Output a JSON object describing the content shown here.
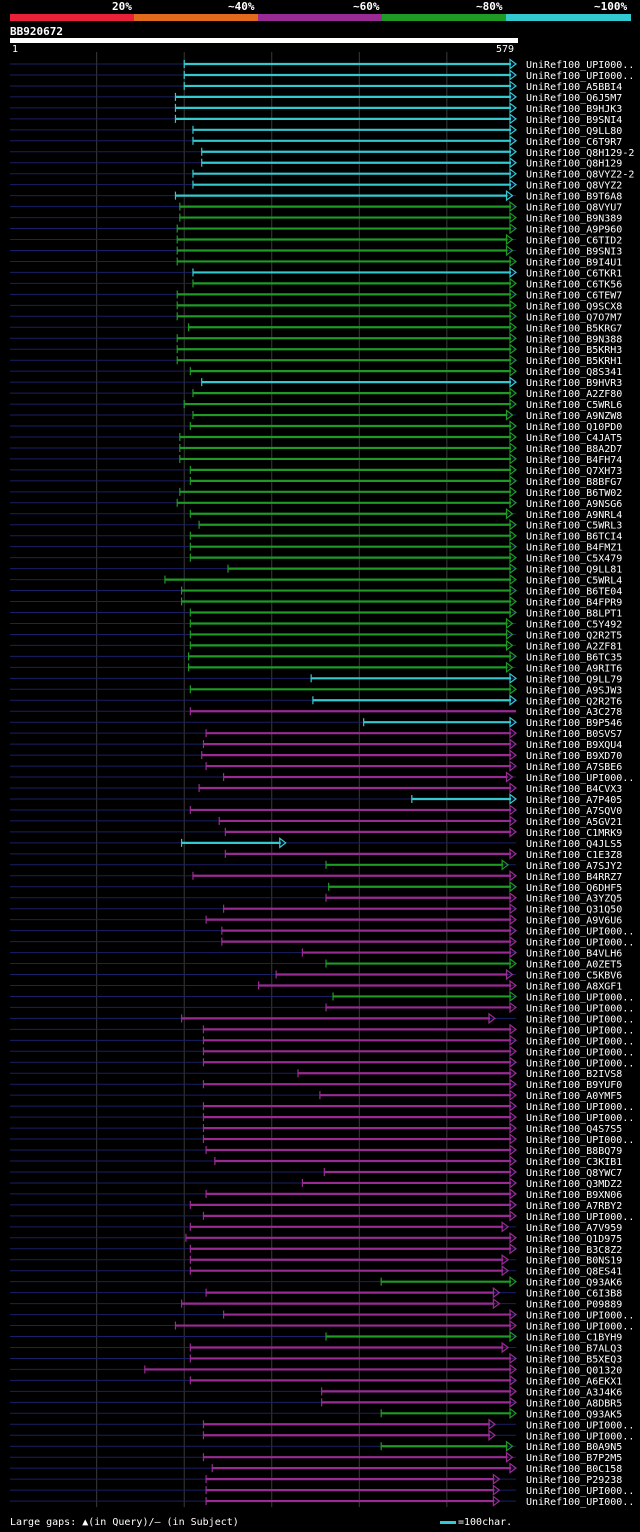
{
  "scale": {
    "labels": [
      "20%",
      "~40%",
      "~60%",
      "~80%",
      "~100%"
    ],
    "colors": [
      "#e8203a",
      "#e26a1c",
      "#9a2b95",
      "#1e9a25",
      "#33c9d0"
    ]
  },
  "query": {
    "name": "BB920672",
    "start": "1",
    "end": "579"
  },
  "footer": {
    "gaps_text": "Large gaps: ▲(in Query)/– (in Subject)",
    "unit_text": "=100char."
  },
  "chart_data": {
    "type": "alignment-overview",
    "query_length": 579,
    "identity_bins": [
      "20%",
      "~40%",
      "~60%",
      "~80%",
      "~100%"
    ],
    "hits": [
      {
        "name": "UniRef100_UPI000..",
        "start": 200,
        "end": 579,
        "bin": 4,
        "arrow": "right"
      },
      {
        "name": "UniRef100_UPI000..",
        "start": 200,
        "end": 579,
        "bin": 4,
        "arrow": "right"
      },
      {
        "name": "UniRef100_A5BBI4",
        "start": 200,
        "end": 579,
        "bin": 4,
        "arrow": "right"
      },
      {
        "name": "UniRef100_Q6J5M7",
        "start": 190,
        "end": 579,
        "bin": 4,
        "arrow": "right"
      },
      {
        "name": "UniRef100_B9HJK3",
        "start": 190,
        "end": 579,
        "bin": 4,
        "arrow": "right"
      },
      {
        "name": "UniRef100_B9SNI4",
        "start": 190,
        "end": 579,
        "bin": 4,
        "arrow": "right"
      },
      {
        "name": "UniRef100_Q9LL80",
        "start": 210,
        "end": 579,
        "bin": 4,
        "arrow": "right"
      },
      {
        "name": "UniRef100_C6T9R7",
        "start": 210,
        "end": 579,
        "bin": 4,
        "arrow": "right"
      },
      {
        "name": "UniRef100_Q8H129-2",
        "start": 220,
        "end": 579,
        "bin": 4,
        "arrow": "right"
      },
      {
        "name": "UniRef100_Q8H129",
        "start": 220,
        "end": 579,
        "bin": 4,
        "arrow": "right"
      },
      {
        "name": "UniRef100_Q8VYZ2-2",
        "start": 210,
        "end": 579,
        "bin": 4,
        "arrow": "right"
      },
      {
        "name": "UniRef100_Q8VYZ2",
        "start": 210,
        "end": 579,
        "bin": 4,
        "arrow": "right"
      },
      {
        "name": "UniRef100_B9T6A8",
        "start": 190,
        "end": 575,
        "bin": 4,
        "arrow": "right"
      },
      {
        "name": "UniRef100_Q8VYU7",
        "start": 195,
        "end": 579,
        "bin": 3,
        "arrow": "right"
      },
      {
        "name": "UniRef100_B9N389",
        "start": 195,
        "end": 579,
        "bin": 3,
        "arrow": "right"
      },
      {
        "name": "UniRef100_A9P960",
        "start": 192,
        "end": 579,
        "bin": 3,
        "arrow": "right"
      },
      {
        "name": "UniRef100_C6TID2",
        "start": 192,
        "end": 575,
        "bin": 3,
        "arrow": "right"
      },
      {
        "name": "UniRef100_B9SNI3",
        "start": 192,
        "end": 575,
        "bin": 3,
        "arrow": "right"
      },
      {
        "name": "UniRef100_B9I4U1",
        "start": 192,
        "end": 579,
        "bin": 3,
        "arrow": "right"
      },
      {
        "name": "UniRef100_C6TKR1",
        "start": 210,
        "end": 579,
        "bin": 4,
        "arrow": "right"
      },
      {
        "name": "UniRef100_C6TK56",
        "start": 210,
        "end": 579,
        "bin": 3,
        "arrow": "right"
      },
      {
        "name": "UniRef100_C6TEW7",
        "start": 192,
        "end": 579,
        "bin": 3,
        "arrow": "right"
      },
      {
        "name": "UniRef100_Q9SCX8",
        "start": 192,
        "end": 579,
        "bin": 3,
        "arrow": "right"
      },
      {
        "name": "UniRef100_Q7O7M7",
        "start": 192,
        "end": 579,
        "bin": 3,
        "arrow": "right"
      },
      {
        "name": "UniRef100_B5KRG7",
        "start": 205,
        "end": 579,
        "bin": 3,
        "arrow": "right"
      },
      {
        "name": "UniRef100_B9N388",
        "start": 192,
        "end": 579,
        "bin": 3,
        "arrow": "right"
      },
      {
        "name": "UniRef100_B5KRH3",
        "start": 192,
        "end": 579,
        "bin": 3,
        "arrow": "right"
      },
      {
        "name": "UniRef100_B5KRH1",
        "start": 192,
        "end": 579,
        "bin": 3,
        "arrow": "right"
      },
      {
        "name": "UniRef100_Q8S341",
        "start": 207,
        "end": 579,
        "bin": 3,
        "arrow": "right"
      },
      {
        "name": "UniRef100_B9HVR3",
        "start": 220,
        "end": 579,
        "bin": 4,
        "arrow": "right"
      },
      {
        "name": "UniRef100_A2ZF80",
        "start": 210,
        "end": 579,
        "bin": 3,
        "arrow": "right"
      },
      {
        "name": "UniRef100_C5WRL6",
        "start": 200,
        "end": 579,
        "bin": 3,
        "arrow": "right"
      },
      {
        "name": "UniRef100_A9NZW8",
        "start": 210,
        "end": 575,
        "bin": 3,
        "arrow": "right"
      },
      {
        "name": "UniRef100_Q10PD0",
        "start": 207,
        "end": 579,
        "bin": 3,
        "arrow": "right"
      },
      {
        "name": "UniRef100_C4JAT5",
        "start": 195,
        "end": 579,
        "bin": 3,
        "arrow": "right"
      },
      {
        "name": "UniRef100_B8A2D7",
        "start": 195,
        "end": 579,
        "bin": 3,
        "arrow": "right"
      },
      {
        "name": "UniRef100_B4FH74",
        "start": 195,
        "end": 579,
        "bin": 3,
        "arrow": "right"
      },
      {
        "name": "UniRef100_Q7XH73",
        "start": 207,
        "end": 579,
        "bin": 3,
        "arrow": "right"
      },
      {
        "name": "UniRef100_B8BFG7",
        "start": 207,
        "end": 579,
        "bin": 3,
        "arrow": "right"
      },
      {
        "name": "UniRef100_B6TW02",
        "start": 195,
        "end": 579,
        "bin": 3,
        "arrow": "right"
      },
      {
        "name": "UniRef100_A9NSG6",
        "start": 192,
        "end": 579,
        "bin": 3,
        "arrow": "right"
      },
      {
        "name": "UniRef100_A9NRL4",
        "start": 207,
        "end": 575,
        "bin": 3,
        "arrow": "right"
      },
      {
        "name": "UniRef100_C5WRL3",
        "start": 217,
        "end": 579,
        "bin": 3,
        "arrow": "right"
      },
      {
        "name": "UniRef100_B6TCI4",
        "start": 207,
        "end": 579,
        "bin": 3,
        "arrow": "right"
      },
      {
        "name": "UniRef100_B4FMZ1",
        "start": 207,
        "end": 579,
        "bin": 3,
        "arrow": "right"
      },
      {
        "name": "UniRef100_C5X479",
        "start": 207,
        "end": 579,
        "bin": 3,
        "arrow": "right"
      },
      {
        "name": "UniRef100_Q9LL81",
        "start": 250,
        "end": 579,
        "bin": 3,
        "arrow": "right"
      },
      {
        "name": "UniRef100_C5WRL4",
        "start": 178,
        "end": 579,
        "bin": 3,
        "arrow": "right"
      },
      {
        "name": "UniRef100_B6TE04",
        "start": 197,
        "end": 579,
        "bin": 3,
        "arrow": "right"
      },
      {
        "name": "UniRef100_B4FPR9",
        "start": 197,
        "end": 579,
        "bin": 3,
        "arrow": "right"
      },
      {
        "name": "UniRef100_B8LPT1",
        "start": 207,
        "end": 579,
        "bin": 3,
        "arrow": "right"
      },
      {
        "name": "UniRef100_C5Y492",
        "start": 207,
        "end": 575,
        "bin": 3,
        "arrow": "right"
      },
      {
        "name": "UniRef100_Q2R2T5",
        "start": 207,
        "end": 575,
        "bin": 3,
        "arrow": "right"
      },
      {
        "name": "UniRef100_A2ZF81",
        "start": 207,
        "end": 575,
        "bin": 3,
        "arrow": "right"
      },
      {
        "name": "UniRef100_B6TC35",
        "start": 205,
        "end": 579,
        "bin": 3,
        "arrow": "right"
      },
      {
        "name": "UniRef100_A9RIT6",
        "start": 205,
        "end": 575,
        "bin": 3,
        "arrow": "right"
      },
      {
        "name": "UniRef100_Q9LL79",
        "start": 345,
        "end": 579,
        "bin": 4,
        "arrow": "right"
      },
      {
        "name": "UniRef100_A9SJW3",
        "start": 207,
        "end": 579,
        "bin": 3,
        "arrow": "right"
      },
      {
        "name": "UniRef100_Q2R2T6",
        "start": 347,
        "end": 579,
        "bin": 4,
        "arrow": "right"
      },
      {
        "name": "UniRef100_A3C278",
        "start": 207,
        "end": 579,
        "bin": 2,
        "arrow": "none"
      },
      {
        "name": "UniRef100_B9P546",
        "start": 405,
        "end": 579,
        "bin": 4,
        "arrow": "right"
      },
      {
        "name": "UniRef100_B0SVS7",
        "start": 225,
        "end": 579,
        "bin": 2,
        "arrow": "right"
      },
      {
        "name": "UniRef100_B9XQU4",
        "start": 222,
        "end": 579,
        "bin": 2,
        "arrow": "right"
      },
      {
        "name": "UniRef100_B9XD70",
        "start": 220,
        "end": 579,
        "bin": 2,
        "arrow": "right"
      },
      {
        "name": "UniRef100_A7SBE6",
        "start": 225,
        "end": 579,
        "bin": 2,
        "arrow": "right"
      },
      {
        "name": "UniRef100_UPI000..",
        "start": 245,
        "end": 575,
        "bin": 2,
        "arrow": "right"
      },
      {
        "name": "UniRef100_B4CVX3",
        "start": 217,
        "end": 579,
        "bin": 2,
        "arrow": "right"
      },
      {
        "name": "UniRef100_A7P405",
        "start": 460,
        "end": 579,
        "bin": 4,
        "arrow": "right"
      },
      {
        "name": "UniRef100_A7SQV0",
        "start": 207,
        "end": 579,
        "bin": 2,
        "arrow": "right"
      },
      {
        "name": "UniRef100_A5GV21",
        "start": 240,
        "end": 579,
        "bin": 2,
        "arrow": "right"
      },
      {
        "name": "UniRef100_C1MRK9",
        "start": 247,
        "end": 579,
        "bin": 2,
        "arrow": "right"
      },
      {
        "name": "UniRef100_Q4JLS5",
        "start": 197,
        "end": 316,
        "bin": 4,
        "arrow": "right"
      },
      {
        "name": "UniRef100_C1E3Z8",
        "start": 247,
        "end": 579,
        "bin": 2,
        "arrow": "right"
      },
      {
        "name": "UniRef100_A7SJY2",
        "start": 362,
        "end": 570,
        "bin": 3,
        "arrow": "right"
      },
      {
        "name": "UniRef100_B4RRZ7",
        "start": 210,
        "end": 579,
        "bin": 2,
        "arrow": "right"
      },
      {
        "name": "UniRef100_Q6DHF5",
        "start": 365,
        "end": 579,
        "bin": 3,
        "arrow": "right"
      },
      {
        "name": "UniRef100_A3YZQ5",
        "start": 362,
        "end": 579,
        "bin": 2,
        "arrow": "right"
      },
      {
        "name": "UniRef100_Q31Q50",
        "start": 245,
        "end": 579,
        "bin": 2,
        "arrow": "right"
      },
      {
        "name": "UniRef100_A9V6U6",
        "start": 225,
        "end": 579,
        "bin": 2,
        "arrow": "right"
      },
      {
        "name": "UniRef100_UPI000..",
        "start": 243,
        "end": 579,
        "bin": 2,
        "arrow": "right"
      },
      {
        "name": "UniRef100_UPI000..",
        "start": 243,
        "end": 579,
        "bin": 2,
        "arrow": "right"
      },
      {
        "name": "UniRef100_B4VLH6",
        "start": 335,
        "end": 579,
        "bin": 2,
        "arrow": "right"
      },
      {
        "name": "UniRef100_A0ZET5",
        "start": 362,
        "end": 579,
        "bin": 3,
        "arrow": "right"
      },
      {
        "name": "UniRef100_C5KBV6",
        "start": 305,
        "end": 575,
        "bin": 2,
        "arrow": "right"
      },
      {
        "name": "UniRef100_A8XGF1",
        "start": 285,
        "end": 579,
        "bin": 2,
        "arrow": "right"
      },
      {
        "name": "UniRef100_UPI000..",
        "start": 370,
        "end": 579,
        "bin": 3,
        "arrow": "right"
      },
      {
        "name": "UniRef100_UPI000..",
        "start": 362,
        "end": 579,
        "bin": 2,
        "arrow": "right"
      },
      {
        "name": "UniRef100_UPI000..",
        "start": 197,
        "end": 555,
        "bin": 2,
        "arrow": "right"
      },
      {
        "name": "UniRef100_UPI000..",
        "start": 222,
        "end": 579,
        "bin": 2,
        "arrow": "right"
      },
      {
        "name": "UniRef100_UPI000..",
        "start": 222,
        "end": 579,
        "bin": 2,
        "arrow": "right"
      },
      {
        "name": "UniRef100_UPI000..",
        "start": 222,
        "end": 579,
        "bin": 2,
        "arrow": "right"
      },
      {
        "name": "UniRef100_UPI000..",
        "start": 222,
        "end": 579,
        "bin": 2,
        "arrow": "right"
      },
      {
        "name": "UniRef100_B2IVS8",
        "start": 330,
        "end": 579,
        "bin": 2,
        "arrow": "right"
      },
      {
        "name": "UniRef100_B9YUF0",
        "start": 222,
        "end": 579,
        "bin": 2,
        "arrow": "right"
      },
      {
        "name": "UniRef100_A0YMF5",
        "start": 355,
        "end": 579,
        "bin": 2,
        "arrow": "right"
      },
      {
        "name": "UniRef100_UPI000..",
        "start": 222,
        "end": 579,
        "bin": 2,
        "arrow": "right"
      },
      {
        "name": "UniRef100_UPI000..",
        "start": 222,
        "end": 579,
        "bin": 2,
        "arrow": "right"
      },
      {
        "name": "UniRef100_Q4S7S5",
        "start": 222,
        "end": 579,
        "bin": 2,
        "arrow": "right"
      },
      {
        "name": "UniRef100_UPI000..",
        "start": 222,
        "end": 579,
        "bin": 2,
        "arrow": "right"
      },
      {
        "name": "UniRef100_B8BQ79",
        "start": 225,
        "end": 579,
        "bin": 2,
        "arrow": "right"
      },
      {
        "name": "UniRef100_C3KIB1",
        "start": 235,
        "end": 579,
        "bin": 2,
        "arrow": "right"
      },
      {
        "name": "UniRef100_Q8YWC7",
        "start": 360,
        "end": 579,
        "bin": 2,
        "arrow": "right"
      },
      {
        "name": "UniRef100_Q3MDZ2",
        "start": 335,
        "end": 579,
        "bin": 2,
        "arrow": "right"
      },
      {
        "name": "UniRef100_B9XN06",
        "start": 225,
        "end": 579,
        "bin": 2,
        "arrow": "right"
      },
      {
        "name": "UniRef100_A7RBY2",
        "start": 207,
        "end": 579,
        "bin": 2,
        "arrow": "right"
      },
      {
        "name": "UniRef100_UPI000..",
        "start": 222,
        "end": 579,
        "bin": 2,
        "arrow": "right"
      },
      {
        "name": "UniRef100_A7V959",
        "start": 207,
        "end": 570,
        "bin": 2,
        "arrow": "right"
      },
      {
        "name": "UniRef100_Q1D975",
        "start": 202,
        "end": 579,
        "bin": 2,
        "arrow": "right"
      },
      {
        "name": "UniRef100_B3C8Z2",
        "start": 207,
        "end": 579,
        "bin": 2,
        "arrow": "right"
      },
      {
        "name": "UniRef100_B0NS19",
        "start": 207,
        "end": 570,
        "bin": 2,
        "arrow": "right"
      },
      {
        "name": "UniRef100_Q8ES41",
        "start": 207,
        "end": 570,
        "bin": 2,
        "arrow": "right"
      },
      {
        "name": "UniRef100_Q93AK6",
        "start": 425,
        "end": 579,
        "bin": 3,
        "arrow": "right"
      },
      {
        "name": "UniRef100_C6I3B8",
        "start": 225,
        "end": 560,
        "bin": 2,
        "arrow": "right"
      },
      {
        "name": "UniRef100_P09889",
        "start": 197,
        "end": 560,
        "bin": 2,
        "arrow": "right"
      },
      {
        "name": "UniRef100_UPI000..",
        "start": 245,
        "end": 579,
        "bin": 2,
        "arrow": "right"
      },
      {
        "name": "UniRef100_UPI000..",
        "start": 190,
        "end": 579,
        "bin": 2,
        "arrow": "right"
      },
      {
        "name": "UniRef100_C1BYH9",
        "start": 362,
        "end": 579,
        "bin": 3,
        "arrow": "right"
      },
      {
        "name": "UniRef100_B7ALQ3",
        "start": 207,
        "end": 570,
        "bin": 2,
        "arrow": "right"
      },
      {
        "name": "UniRef100_B5XEQ3",
        "start": 207,
        "end": 579,
        "bin": 2,
        "arrow": "right"
      },
      {
        "name": "UniRef100_Q01320",
        "start": 155,
        "end": 579,
        "bin": 2,
        "arrow": "right"
      },
      {
        "name": "UniRef100_A6EKX1",
        "start": 207,
        "end": 579,
        "bin": 2,
        "arrow": "right"
      },
      {
        "name": "UniRef100_A3J4K6",
        "start": 357,
        "end": 579,
        "bin": 2,
        "arrow": "right"
      },
      {
        "name": "UniRef100_A8DBR5",
        "start": 357,
        "end": 579,
        "bin": 2,
        "arrow": "right"
      },
      {
        "name": "UniRef100_Q93AK5",
        "start": 425,
        "end": 579,
        "bin": 3,
        "arrow": "right"
      },
      {
        "name": "UniRef100_UPI000..",
        "start": 222,
        "end": 555,
        "bin": 2,
        "arrow": "right"
      },
      {
        "name": "UniRef100_UPI000..",
        "start": 222,
        "end": 555,
        "bin": 2,
        "arrow": "right"
      },
      {
        "name": "UniRef100_B0A9N5",
        "start": 425,
        "end": 575,
        "bin": 3,
        "arrow": "right"
      },
      {
        "name": "UniRef100_B7P2M5",
        "start": 222,
        "end": 575,
        "bin": 2,
        "arrow": "right"
      },
      {
        "name": "UniRef100_B0C158",
        "start": 232,
        "end": 579,
        "bin": 2,
        "arrow": "right"
      },
      {
        "name": "UniRef100_P29238",
        "start": 225,
        "end": 560,
        "bin": 2,
        "arrow": "right"
      },
      {
        "name": "UniRef100_UPI000..",
        "start": 225,
        "end": 560,
        "bin": 2,
        "arrow": "right"
      },
      {
        "name": "UniRef100_UPI000..",
        "start": 225,
        "end": 560,
        "bin": 2,
        "arrow": "right"
      }
    ]
  }
}
